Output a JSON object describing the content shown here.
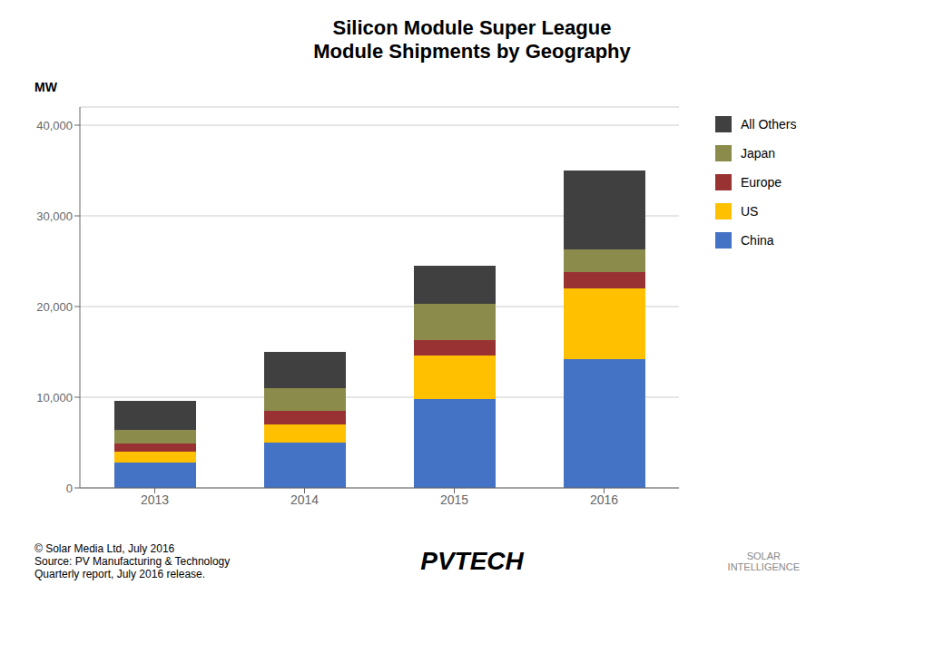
{
  "chart_data": {
    "type": "bar",
    "title": "Silicon Module Super League\nModule Shipments by Geography",
    "ylabel": "MW",
    "categories": [
      "2013",
      "2014",
      "2015",
      "2016"
    ],
    "series": [
      {
        "name": "China",
        "color": "#4472C4",
        "values": [
          2800,
          5000,
          9800,
          14200
        ]
      },
      {
        "name": "US",
        "color": "#FFC000",
        "values": [
          1200,
          2000,
          4800,
          7800
        ]
      },
      {
        "name": "Europe",
        "color": "#993333",
        "values": [
          900,
          1500,
          1700,
          1800
        ]
      },
      {
        "name": "Japan",
        "color": "#8B8B4B",
        "values": [
          1500,
          2500,
          4000,
          2500
        ]
      },
      {
        "name": "All Others",
        "color": "#404040",
        "values": [
          3200,
          4000,
          4200,
          8700
        ]
      }
    ],
    "stacked": true,
    "ylim": [
      0,
      42000
    ],
    "yticks": [
      0,
      {
        "value": 10000,
        "label": "10,000"
      },
      {
        "value": 20000,
        "label": "20,000"
      },
      {
        "value": 30000,
        "label": "30,000"
      },
      {
        "value": 40000,
        "label": "40,000"
      }
    ],
    "grid": true,
    "legend": "right",
    "annotations": [
      "© Solar Media Ltd, July 2016\nSource: PV Manufacturing & Technology\nQuarterly report, July 2016 release.",
      "PVTECH",
      "SOLAR\nINTELLIGENCE"
    ]
  }
}
